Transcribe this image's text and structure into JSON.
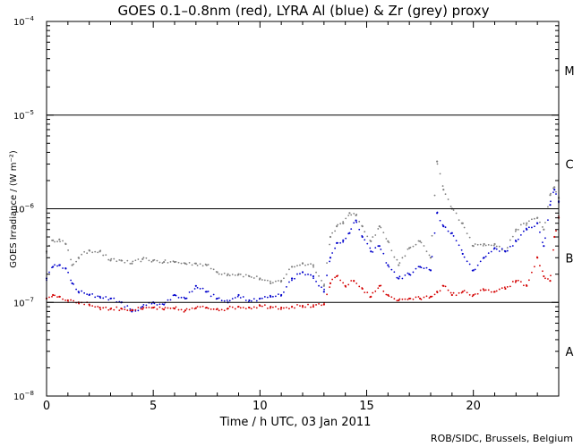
{
  "chart_data": {
    "type": "scatter",
    "title": "GOES 0.1–0.8nm (red), LYRA Al (blue) & Zr (grey) proxy",
    "xlabel": "Time / h UTC, 03 Jan 2011",
    "ylabel": "GOES Irradiance / (W m⁻²)",
    "credit": "ROB/SIDC, Brussels, Belgium",
    "xlim": [
      0,
      24
    ],
    "ylim": [
      1e-08,
      0.0001
    ],
    "y_scale": "log",
    "x_ticks": [
      0,
      5,
      10,
      15,
      20
    ],
    "y_ticks": [
      {
        "exp": -8,
        "base": "10",
        "sup": "−8"
      },
      {
        "exp": -7,
        "base": "10",
        "sup": "−7"
      },
      {
        "exp": -6,
        "base": "10",
        "sup": "−6"
      },
      {
        "exp": -5,
        "base": "10",
        "sup": "−5"
      },
      {
        "exp": -4,
        "base": "10",
        "sup": "−4"
      }
    ],
    "flare_class_lines": [
      1e-07,
      1e-06,
      1e-05
    ],
    "flare_classes": [
      {
        "label": "A",
        "center": 3e-08
      },
      {
        "label": "B",
        "center": 3e-07
      },
      {
        "label": "C",
        "center": 3e-06
      },
      {
        "label": "M",
        "center": 3e-05
      }
    ],
    "colors": {
      "goes": "#d40000",
      "lyra_al": "#0000cc",
      "lyra_zr": "#7f7f7f",
      "axis": "#000000"
    },
    "series": [
      {
        "name": "GOES 0.1–0.8nm",
        "color": "#d40000",
        "x": [
          0.0,
          0.3,
          0.6,
          1.0,
          1.5,
          2.0,
          2.5,
          3.0,
          3.5,
          4.0,
          4.5,
          5.0,
          5.5,
          6.0,
          6.5,
          7.0,
          7.5,
          8.0,
          8.5,
          9.0,
          9.5,
          10.0,
          10.5,
          11.0,
          11.5,
          12.0,
          12.5,
          13.0,
          13.3,
          13.6,
          14.0,
          14.4,
          14.8,
          15.2,
          15.6,
          16.0,
          16.5,
          17.0,
          17.5,
          18.0,
          18.3,
          18.6,
          19.0,
          19.5,
          20.0,
          20.5,
          21.0,
          21.5,
          22.0,
          22.5,
          23.0,
          23.3,
          23.6,
          23.8,
          24.0
        ],
        "y": [
          1.1e-07,
          1.2e-07,
          1.15e-07,
          1.05e-07,
          1e-07,
          9.5e-08,
          8.8e-08,
          8.5e-08,
          8.6e-08,
          8.3e-08,
          8.5e-08,
          8.8e-08,
          8.4e-08,
          8.6e-08,
          8.2e-08,
          8.7e-08,
          8.8e-08,
          8.5e-08,
          8.6e-08,
          9e-08,
          8.8e-08,
          9.2e-08,
          9e-08,
          8.8e-08,
          9e-08,
          9.2e-08,
          9e-08,
          9.5e-08,
          1.6e-07,
          1.9e-07,
          1.5e-07,
          1.7e-07,
          1.4e-07,
          1.15e-07,
          1.5e-07,
          1.2e-07,
          1.05e-07,
          1.1e-07,
          1.1e-07,
          1.15e-07,
          1.3e-07,
          1.5e-07,
          1.2e-07,
          1.3e-07,
          1.2e-07,
          1.35e-07,
          1.3e-07,
          1.4e-07,
          1.7e-07,
          1.5e-07,
          3e-07,
          1.9e-07,
          1.7e-07,
          5e-07,
          8e-07
        ]
      },
      {
        "name": "LYRA Al proxy",
        "color": "#0000cc",
        "x": [
          0.0,
          0.3,
          0.6,
          0.9,
          1.2,
          1.5,
          2.0,
          2.5,
          3.0,
          3.5,
          4.0,
          4.5,
          5.0,
          5.5,
          6.0,
          6.5,
          7.0,
          7.5,
          8.0,
          8.5,
          9.0,
          9.5,
          10.0,
          10.5,
          11.0,
          11.5,
          12.0,
          12.5,
          13.0,
          13.3,
          13.6,
          13.9,
          14.2,
          14.5,
          14.8,
          15.2,
          15.6,
          16.0,
          16.5,
          17.0,
          17.5,
          18.0,
          18.3,
          18.6,
          19.0,
          19.5,
          20.0,
          20.5,
          21.0,
          21.5,
          22.0,
          22.5,
          23.0,
          23.3,
          23.6,
          23.8,
          24.0
        ],
        "y": [
          1.8e-07,
          2.4e-07,
          2.5e-07,
          2.3e-07,
          1.6e-07,
          1.3e-07,
          1.2e-07,
          1.15e-07,
          1.1e-07,
          1e-07,
          8e-08,
          9e-08,
          1e-07,
          9.5e-08,
          1.2e-07,
          1.1e-07,
          1.5e-07,
          1.3e-07,
          1.1e-07,
          1e-07,
          1.2e-07,
          1.05e-07,
          1.1e-07,
          1.15e-07,
          1.2e-07,
          1.8e-07,
          2.1e-07,
          1.9e-07,
          1.3e-07,
          3e-07,
          4.3e-07,
          4.6e-07,
          5.5e-07,
          7.5e-07,
          5e-07,
          3.5e-07,
          4e-07,
          2.5e-07,
          1.8e-07,
          2e-07,
          2.4e-07,
          2.2e-07,
          9e-07,
          6.5e-07,
          5.5e-07,
          3.3e-07,
          2.2e-07,
          3e-07,
          3.8e-07,
          3.5e-07,
          4.5e-07,
          6e-07,
          7e-07,
          4e-07,
          1.1e-06,
          1.6e-06,
          1.2e-06
        ]
      },
      {
        "name": "LYRA Zr proxy",
        "color": "#7f7f7f",
        "x": [
          0.0,
          0.3,
          0.6,
          0.9,
          1.2,
          1.5,
          2.0,
          2.5,
          3.0,
          3.5,
          4.0,
          4.5,
          5.0,
          5.5,
          6.0,
          6.5,
          7.0,
          7.5,
          8.0,
          8.5,
          9.0,
          9.5,
          10.0,
          10.5,
          11.0,
          11.5,
          12.0,
          12.5,
          13.0,
          13.3,
          13.6,
          13.9,
          14.2,
          14.5,
          14.8,
          15.2,
          15.6,
          16.0,
          16.5,
          17.0,
          17.5,
          18.0,
          18.3,
          18.6,
          19.0,
          19.5,
          20.0,
          20.5,
          21.0,
          21.5,
          22.0,
          22.5,
          23.0,
          23.3,
          23.6,
          23.8,
          24.0
        ],
        "y": [
          3.5e-07,
          4.6e-07,
          4.7e-07,
          4.2e-07,
          2.5e-07,
          3e-07,
          3.6e-07,
          3.5e-07,
          2.8e-07,
          2.8e-07,
          2.6e-07,
          2.9e-07,
          2.8e-07,
          2.7e-07,
          2.7e-07,
          2.6e-07,
          2.6e-07,
          2.5e-07,
          2.1e-07,
          2e-07,
          2e-07,
          1.9e-07,
          1.8e-07,
          1.6e-07,
          1.7e-07,
          2.4e-07,
          2.6e-07,
          2.5e-07,
          1.5e-07,
          5e-07,
          6.5e-07,
          7e-07,
          9e-07,
          8.5e-07,
          6.5e-07,
          4.5e-07,
          6.5e-07,
          4.5e-07,
          2.5e-07,
          3.8e-07,
          4.5e-07,
          3e-07,
          3.2e-06,
          1.6e-06,
          1e-06,
          7e-07,
          4e-07,
          4.2e-07,
          4.2e-07,
          3.5e-07,
          6e-07,
          7e-07,
          8e-07,
          6e-07,
          1.4e-06,
          1.7e-06,
          1.3e-06
        ]
      }
    ]
  }
}
